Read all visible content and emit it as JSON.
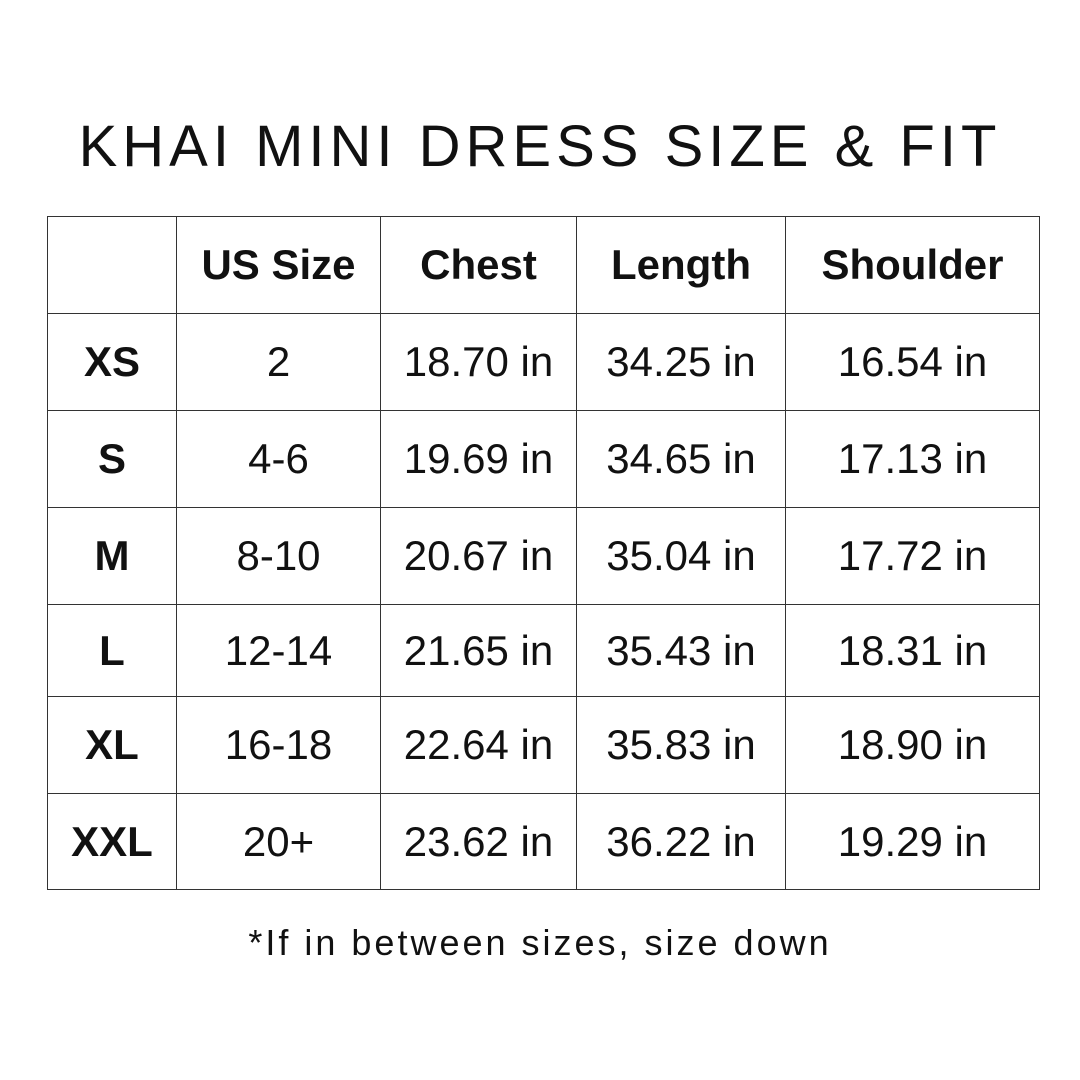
{
  "title": "KHAI MINI DRESS SIZE & FIT",
  "headers": [
    "",
    "US Size",
    "Chest",
    "Length",
    "Shoulder"
  ],
  "rows": [
    [
      "XS",
      "2",
      "18.70 in",
      "34.25 in",
      "16.54 in"
    ],
    [
      "S",
      "4-6",
      "19.69 in",
      "34.65 in",
      "17.13 in"
    ],
    [
      "M",
      "8-10",
      "20.67 in",
      "35.04 in",
      "17.72 in"
    ],
    [
      "L",
      "12-14",
      "21.65 in",
      "35.43 in",
      "18.31 in"
    ],
    [
      "XL",
      "16-18",
      "22.64 in",
      "35.83 in",
      "18.90 in"
    ],
    [
      "XXL",
      "20+",
      "23.62 in",
      "36.22 in",
      "19.29 in"
    ]
  ],
  "note": "*If in between sizes, size down"
}
